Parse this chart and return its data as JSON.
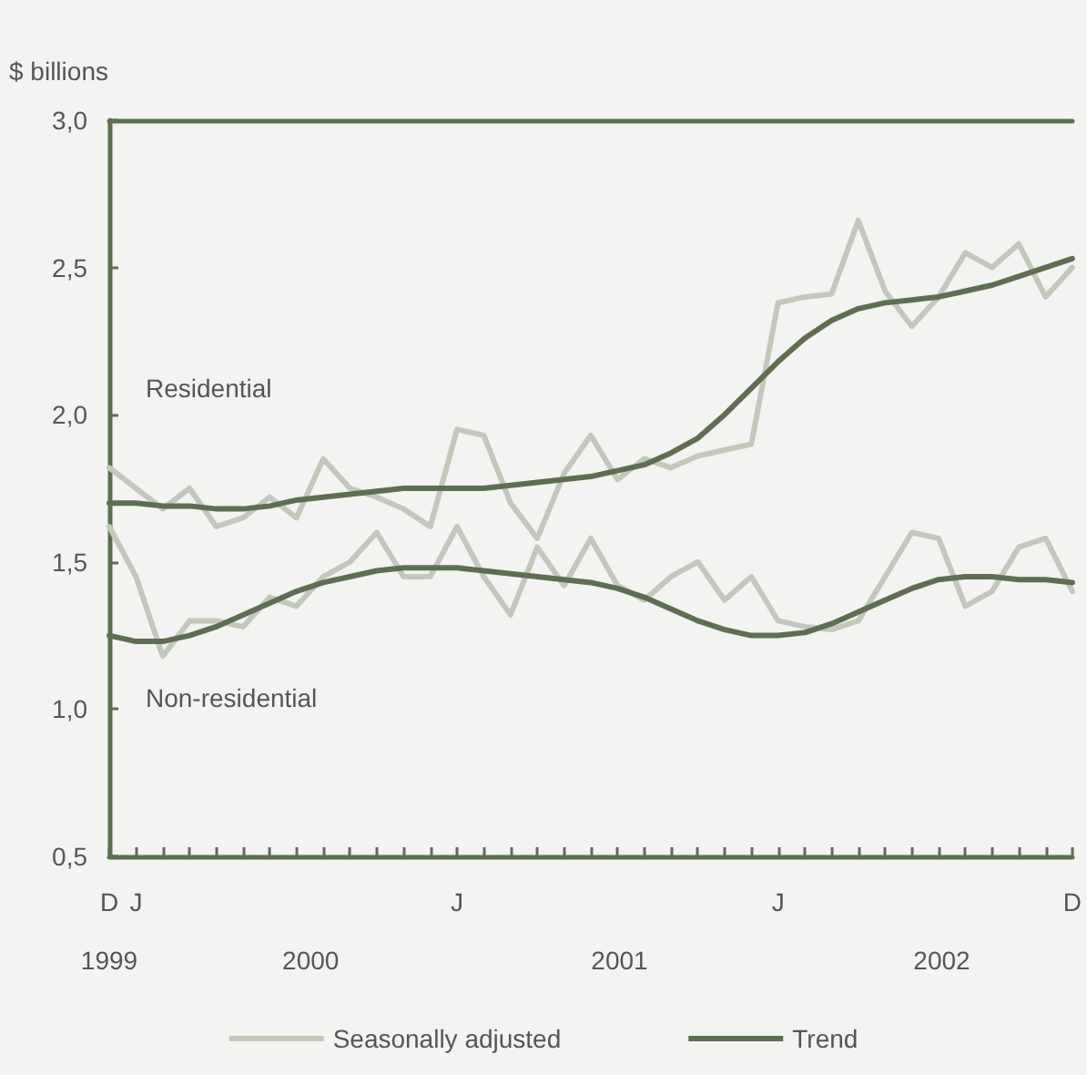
{
  "chart_data": {
    "type": "line",
    "ylabel": "$ billions",
    "categories": [
      "D",
      "J",
      null,
      null,
      null,
      null,
      null,
      null,
      null,
      null,
      null,
      null,
      null,
      "J",
      null,
      null,
      null,
      null,
      null,
      null,
      null,
      null,
      null,
      null,
      null,
      "J",
      null,
      null,
      null,
      null,
      null,
      null,
      null,
      null,
      null,
      null,
      "D"
    ],
    "series": [
      {
        "name": "Seasonally adjusted",
        "color": "#c4c8bc",
        "values": [
          1.82,
          1.75,
          1.68,
          1.75,
          1.62,
          1.65,
          1.72,
          1.65,
          1.85,
          1.75,
          1.72,
          1.68,
          1.62,
          1.95,
          1.93,
          1.7,
          1.58,
          1.8,
          1.93,
          1.78,
          1.85,
          1.82,
          1.86,
          1.88,
          1.9,
          2.38,
          2.4,
          2.41,
          2.66,
          2.42,
          2.3,
          2.4,
          2.55,
          2.5,
          2.58,
          2.4,
          2.5
        ]
      },
      {
        "color": "#c4c8bc",
        "values": [
          1.62,
          1.45,
          1.18,
          1.3,
          1.3,
          1.28,
          1.38,
          1.35,
          1.45,
          1.5,
          1.6,
          1.45,
          1.45,
          1.62,
          1.45,
          1.32,
          1.55,
          1.42,
          1.58,
          1.42,
          1.37,
          1.45,
          1.5,
          1.37,
          1.45,
          1.3,
          1.28,
          1.27,
          1.3,
          1.45,
          1.6,
          1.58,
          1.35,
          1.4,
          1.55,
          1.58,
          1.4
        ]
      },
      {
        "name": "Trend",
        "color": "#5f6e52",
        "values": [
          1.7,
          1.7,
          1.69,
          1.69,
          1.68,
          1.68,
          1.69,
          1.71,
          1.72,
          1.73,
          1.74,
          1.75,
          1.75,
          1.75,
          1.75,
          1.76,
          1.77,
          1.78,
          1.79,
          1.81,
          1.83,
          1.87,
          1.92,
          2.0,
          2.09,
          2.18,
          2.26,
          2.32,
          2.36,
          2.38,
          2.39,
          2.4,
          2.42,
          2.44,
          2.47,
          2.5,
          2.53
        ]
      },
      {
        "color": "#5f6e52",
        "values": [
          1.25,
          1.23,
          1.23,
          1.25,
          1.28,
          1.32,
          1.36,
          1.4,
          1.43,
          1.45,
          1.47,
          1.48,
          1.48,
          1.48,
          1.47,
          1.46,
          1.45,
          1.44,
          1.43,
          1.41,
          1.38,
          1.34,
          1.3,
          1.27,
          1.25,
          1.25,
          1.26,
          1.29,
          1.33,
          1.37,
          1.41,
          1.44,
          1.45,
          1.45,
          1.44,
          1.44,
          1.43
        ]
      }
    ],
    "annotations": [
      "Residential",
      "Non-residential",
      "1999",
      "2000",
      "2001",
      "2002"
    ],
    "ylim": [
      0.5,
      3.0
    ],
    "yticks": [
      {
        "value": 0.5,
        "label": "0,5"
      },
      {
        "value": 1.0,
        "label": "1,0"
      },
      {
        "value": 1.5,
        "label": "1,5"
      },
      {
        "value": 2.0,
        "label": "2,0"
      },
      {
        "value": 2.5,
        "label": "2,5"
      },
      {
        "value": 3.0,
        "label": "3,0"
      }
    ],
    "grid": false,
    "legend": "bottom",
    "marker": "none",
    "line_style": "solid"
  }
}
